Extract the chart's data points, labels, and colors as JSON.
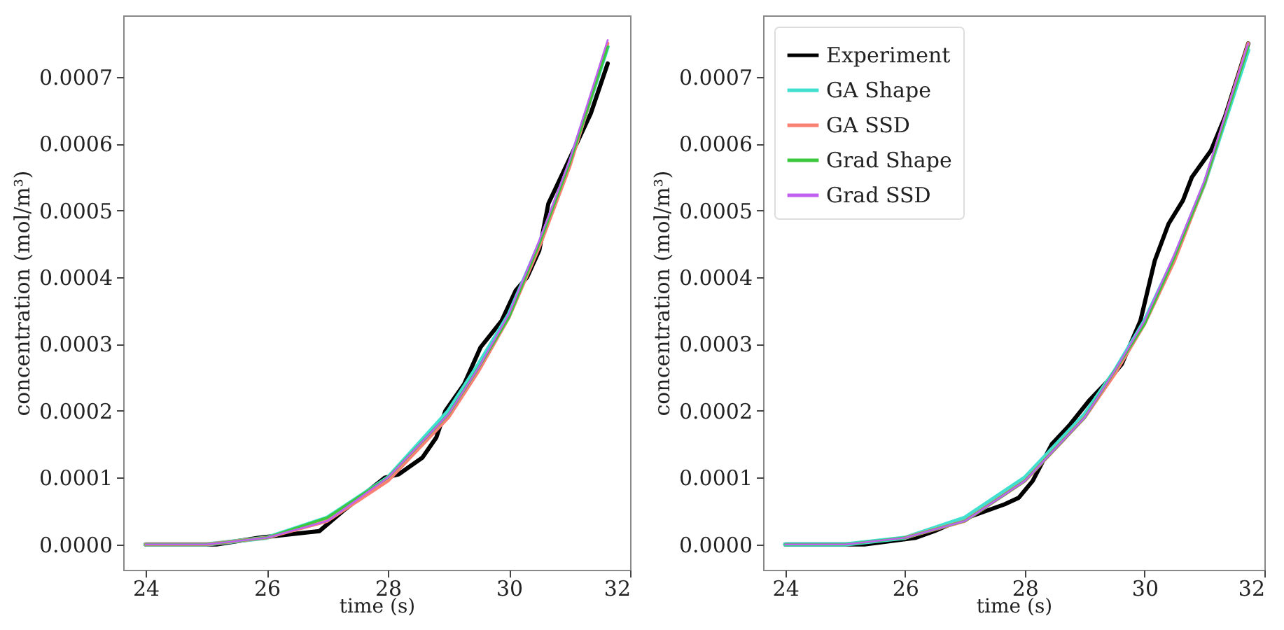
{
  "chart_data": [
    {
      "type": "line",
      "xlabel": "time (s)",
      "ylabel": "concentration (mol/m³)",
      "xlim": [
        23.63,
        32.0
      ],
      "ylim": [
        -3.8e-05,
        0.000792
      ],
      "xticks": [
        24,
        26,
        28,
        30,
        32
      ],
      "yticks": [
        {
          "value": 0,
          "label": "0.0000"
        },
        {
          "value": 0.0001,
          "label": "0.0001"
        },
        {
          "value": 0.0002,
          "label": "0.0002"
        },
        {
          "value": 0.0003,
          "label": "0.0003"
        },
        {
          "value": 0.0004,
          "label": "0.0004"
        },
        {
          "value": 0.0005,
          "label": "0.0005"
        },
        {
          "value": 0.0006,
          "label": "0.0006"
        },
        {
          "value": 0.0007,
          "label": "0.0007"
        }
      ],
      "grid": false,
      "legend": false,
      "line_style": "solid",
      "series": [
        {
          "color": "#000000",
          "x": [
            24,
            25.17,
            25.87,
            26.87,
            27.26,
            27.95,
            28.18,
            28.57,
            28.8,
            28.95,
            29.26,
            29.53,
            29.88,
            30.11,
            30.3,
            30.5,
            30.65,
            31.04,
            31.35,
            31.63
          ],
          "values": [
            0,
            0,
            1e-05,
            2e-05,
            5e-05,
            0.0001,
            0.000105,
            0.00013,
            0.00016,
            0.0002,
            0.00024,
            0.000295,
            0.000335,
            0.00038,
            0.0004,
            0.00044,
            0.00051,
            0.000585,
            0.000645,
            0.00072
          ]
        },
        {
          "color": "#40e0d0",
          "x": [
            24,
            25,
            26,
            27,
            28,
            29,
            29.5,
            30,
            30.5,
            31,
            31.63
          ],
          "values": [
            0,
            0,
            1e-05,
            4e-05,
            0.0001,
            0.0002,
            0.00027,
            0.000345,
            0.00045,
            0.00057,
            0.000745
          ]
        },
        {
          "color": "#fa8072",
          "x": [
            24,
            25,
            26,
            27,
            28,
            29,
            29.5,
            30,
            30.5,
            31,
            31.63
          ],
          "values": [
            0,
            0,
            1e-05,
            3.5e-05,
            9.5e-05,
            0.00019,
            0.00026,
            0.00034,
            0.000445,
            0.000565,
            0.00075
          ]
        },
        {
          "color": "#3cc83c",
          "x": [
            24,
            25,
            26,
            27,
            28,
            29,
            29.5,
            30,
            30.5,
            31,
            31.63
          ],
          "values": [
            0,
            0,
            1e-05,
            4e-05,
            0.0001,
            0.000195,
            0.000265,
            0.00034,
            0.00045,
            0.00057,
            0.000745
          ]
        },
        {
          "color": "#c060f0",
          "x": [
            24,
            25,
            26,
            27,
            28,
            29,
            29.5,
            30,
            30.5,
            31,
            31.63
          ],
          "values": [
            0,
            0,
            1e-05,
            3.5e-05,
            0.0001,
            0.000195,
            0.000265,
            0.000345,
            0.000455,
            0.000575,
            0.000755
          ]
        }
      ]
    },
    {
      "type": "line",
      "xlabel": "time (s)",
      "ylabel": "concentration (mol/m³)",
      "xlim": [
        23.63,
        32.0
      ],
      "ylim": [
        -3.8e-05,
        0.000792
      ],
      "xticks": [
        24,
        26,
        28,
        30,
        32
      ],
      "yticks": [
        {
          "value": 0,
          "label": "0.0000"
        },
        {
          "value": 0.0001,
          "label": "0.0001"
        },
        {
          "value": 0.0002,
          "label": "0.0002"
        },
        {
          "value": 0.0003,
          "label": "0.0003"
        },
        {
          "value": 0.0004,
          "label": "0.0004"
        },
        {
          "value": 0.0005,
          "label": "0.0005"
        },
        {
          "value": 0.0006,
          "label": "0.0006"
        },
        {
          "value": 0.0007,
          "label": "0.0007"
        }
      ],
      "grid": false,
      "legend": "top left",
      "line_style": "solid",
      "series": [
        {
          "name": "Experiment",
          "color": "#000000",
          "x": [
            24,
            25.32,
            26.18,
            26.49,
            26.88,
            27.35,
            27.66,
            27.9,
            28.13,
            28.45,
            28.76,
            29.07,
            29.39,
            29.62,
            29.93,
            30.17,
            30.4,
            30.64,
            30.79,
            31.11,
            31.34,
            31.73
          ],
          "values": [
            0,
            0,
            1e-05,
            2e-05,
            3.5e-05,
            5e-05,
            6e-05,
            7e-05,
            9.5e-05,
            0.00015,
            0.00018,
            0.000215,
            0.000245,
            0.00027,
            0.000335,
            0.000425,
            0.00048,
            0.000515,
            0.00055,
            0.00059,
            0.00064,
            0.00075
          ]
        },
        {
          "name": "GA Shape",
          "color": "#40e0d0",
          "x": [
            24,
            25,
            26,
            27,
            28,
            29,
            29.5,
            30,
            30.5,
            31,
            31.73
          ],
          "values": [
            0,
            0,
            1e-05,
            4e-05,
            0.0001,
            0.000195,
            0.00026,
            0.000335,
            0.00043,
            0.00054,
            0.00074
          ]
        },
        {
          "name": "GA SSD",
          "color": "#fa8072",
          "x": [
            26,
            27,
            28,
            29,
            29.5,
            30,
            30.5,
            31,
            31.73
          ],
          "values": [
            1e-05,
            3.5e-05,
            9.5e-05,
            0.00019,
            0.000255,
            0.00033,
            0.000425,
            0.00054,
            0.00075
          ]
        },
        {
          "name": "Grad Shape",
          "color": "#3cc83c",
          "x": [
            24,
            25,
            26,
            27,
            28,
            29,
            29.5,
            30,
            30.5,
            31,
            31.73
          ],
          "values": [
            0,
            0,
            1e-05,
            3.5e-05,
            9.5e-05,
            0.00019,
            0.00026,
            0.00033,
            0.00043,
            0.00054,
            0.000745
          ]
        },
        {
          "name": "Grad SSD",
          "color": "#c060f0",
          "x": [
            24,
            25,
            26,
            27,
            28,
            29,
            29.5,
            30,
            30.5,
            31,
            31.73
          ],
          "values": [
            0,
            0,
            1e-05,
            3.5e-05,
            9.5e-05,
            0.00019,
            0.00026,
            0.000335,
            0.000435,
            0.000545,
            0.00075
          ]
        }
      ]
    }
  ]
}
